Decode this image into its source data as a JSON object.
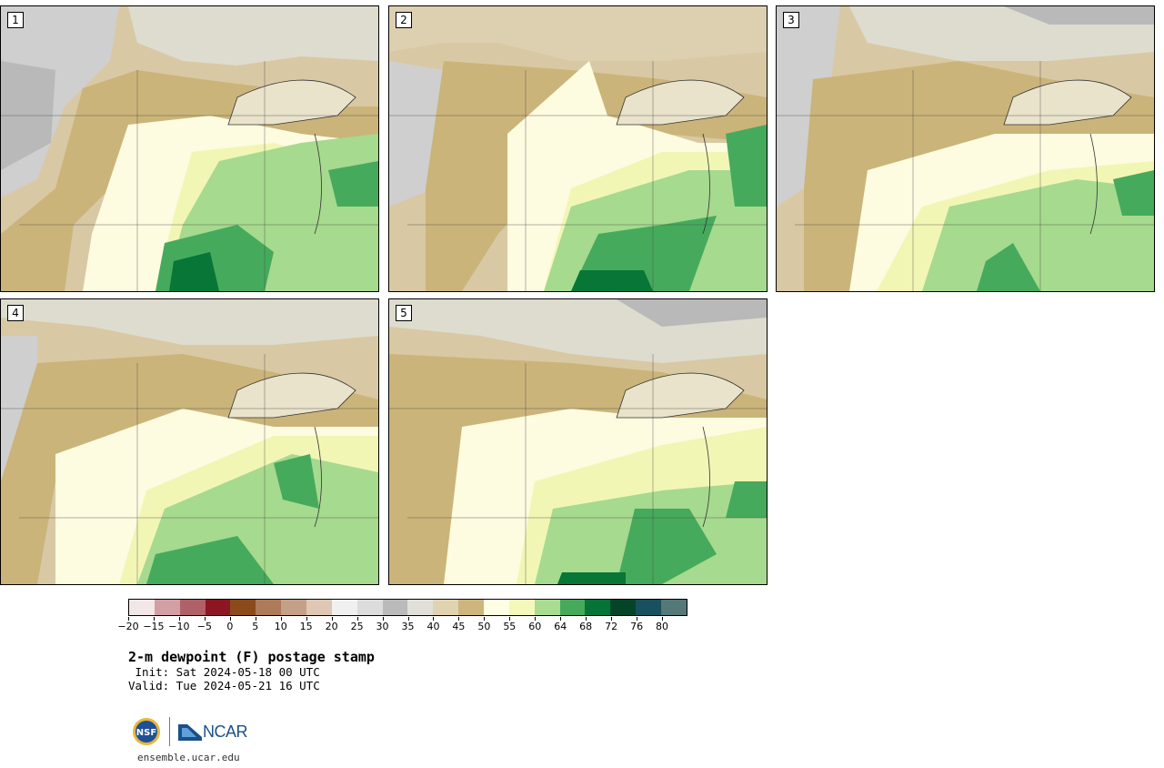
{
  "product": {
    "title": "2-m dewpoint (F) postage stamp",
    "init_line": " Init: Sat 2024-05-18 00 UTC",
    "valid_line": "Valid: Tue 2024-05-21 16 UTC"
  },
  "panels": [
    {
      "label": "1"
    },
    {
      "label": "2"
    },
    {
      "label": "3"
    },
    {
      "label": "4"
    },
    {
      "label": "5"
    }
  ],
  "colorbar": {
    "colors": [
      "#f2e6e6",
      "#d2a0a4",
      "#b06068",
      "#8c1622",
      "#8a4a1a",
      "#ad7a5a",
      "#c4a088",
      "#e0c6b4",
      "#f0f0f0",
      "#dcdcdc",
      "#bababa",
      "#e0e0d8",
      "#e0d4b0",
      "#cdb57c",
      "#fefee2",
      "#f4f8b8",
      "#aadc90",
      "#46aa5c",
      "#057438",
      "#06442a",
      "#18505e",
      "#557878"
    ],
    "tick_labels": [
      "−20",
      "−15",
      "−10",
      "−5",
      "0",
      "5",
      "10",
      "15",
      "20",
      "25",
      "30",
      "35",
      "40",
      "45",
      "50",
      "55",
      "60",
      "64",
      "68",
      "72",
      "76",
      "80"
    ]
  },
  "footer": {
    "logo_nsf": "NSF",
    "logo_ncar": "NCAR",
    "url": "ensemble.ucar.edu"
  }
}
